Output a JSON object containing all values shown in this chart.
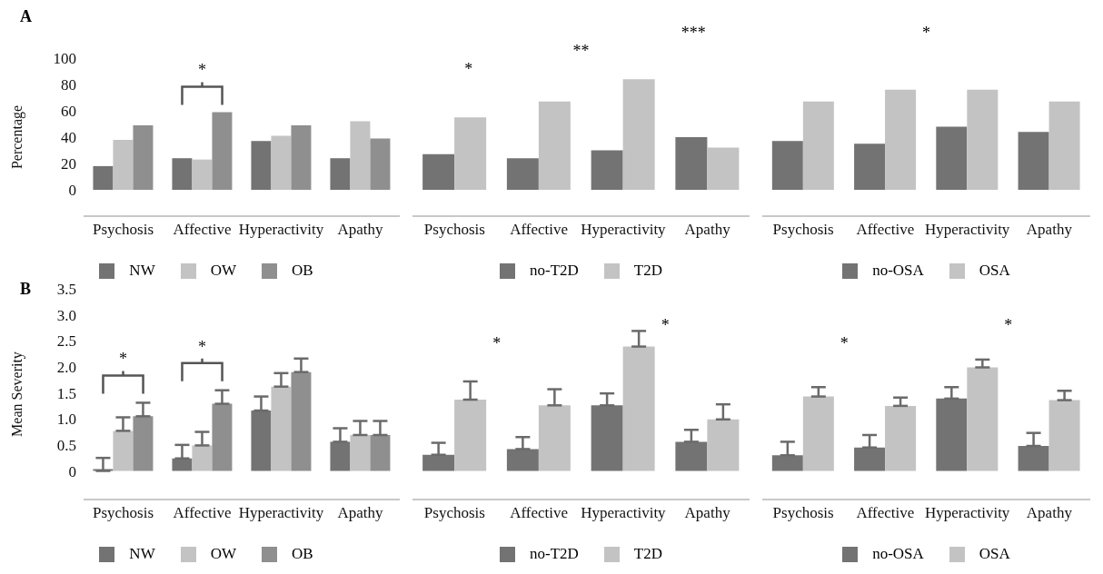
{
  "chart_data": [
    {
      "type": "bar",
      "title": "A",
      "ylabel": "Percentage",
      "categories": [
        "Psychosis",
        "Affective",
        "Hyperactivity",
        "Apathy"
      ],
      "series": [
        {
          "name": "NW",
          "color": "#737373",
          "values": [
            18,
            24,
            37,
            24
          ]
        },
        {
          "name": "OW",
          "color": "#c3c3c3",
          "values": [
            38,
            23,
            41,
            52
          ]
        },
        {
          "name": "OB",
          "color": "#8f8f8f",
          "values": [
            49,
            59,
            49,
            39
          ]
        }
      ],
      "ylim": [
        -20,
        100
      ],
      "yticks": [
        0,
        20,
        40,
        60,
        80,
        100
      ],
      "legend": "bottom",
      "annotations": [
        {
          "text": "*",
          "x": "Affective"
        }
      ]
    },
    {
      "type": "bar",
      "categories": [
        "Psychosis",
        "Affective",
        "Hyperactivity",
        "Apathy"
      ],
      "series": [
        {
          "name": "no-T2D",
          "color": "#737373",
          "values": [
            27,
            24,
            30,
            40
          ]
        },
        {
          "name": "T2D",
          "color": "#c3c3c3",
          "values": [
            55,
            67,
            84,
            32
          ]
        }
      ],
      "ylim": [
        -20,
        100
      ],
      "tick_labels": "x",
      "legend": "bottom",
      "annotations": [
        "*",
        "**",
        "***"
      ]
    },
    {
      "type": "bar",
      "categories": [
        "Psychosis",
        "Affective",
        "Hyperactivity",
        "Apathy"
      ],
      "series": [
        {
          "name": "no-OSA",
          "color": "#737373",
          "values": [
            37,
            35,
            48,
            44
          ]
        },
        {
          "name": "OSA",
          "color": "#c3c3c3",
          "values": [
            67,
            76,
            76,
            67
          ]
        }
      ],
      "ylim": [
        -20,
        100
      ],
      "tick_labels": "x",
      "legend": "bottom",
      "annotations": [
        "*"
      ]
    },
    {
      "type": "bar",
      "title": "B",
      "ylabel": "Mean Severity",
      "categories": [
        "Psychosis",
        "Affective",
        "Hyperactivity",
        "Apathy"
      ],
      "series": [
        {
          "name": "NW",
          "color": "#737373",
          "values": [
            0,
            0.24,
            1.16,
            0.56
          ],
          "errors": [
            [
              0,
              0.25
            ],
            [
              0.24,
              0.5
            ],
            [
              1.16,
              1.43
            ],
            [
              0.56,
              0.82
            ]
          ]
        },
        {
          "name": "OW",
          "color": "#c3c3c3",
          "values": [
            0.77,
            0.49,
            1.62,
            0.69
          ],
          "errors": [
            [
              0.77,
              1.03
            ],
            [
              0.49,
              0.75
            ],
            [
              1.62,
              1.88
            ],
            [
              0.69,
              0.96
            ]
          ]
        },
        {
          "name": "OB",
          "color": "#8f8f8f",
          "values": [
            1.05,
            1.29,
            1.9,
            0.69
          ],
          "errors": [
            [
              1.05,
              1.31
            ],
            [
              1.29,
              1.55
            ],
            [
              1.9,
              2.16
            ],
            [
              0.69,
              0.96
            ]
          ]
        }
      ],
      "ylim": [
        -0.55,
        3.5
      ],
      "yticks": [
        0,
        0.5,
        {
          "value": 1,
          "label": "1.0"
        },
        1.5,
        {
          "value": 2,
          "label": "2.0"
        },
        2.5,
        {
          "value": 3,
          "label": "3.0"
        },
        3.5
      ],
      "legend": "bottom",
      "annotations": [
        {
          "text": "*",
          "x": "Psychosis"
        },
        {
          "text": "*",
          "x": "Affective"
        }
      ]
    },
    {
      "type": "bar",
      "categories": [
        "Psychosis",
        "Affective",
        "Hyperactivity",
        "Apathy"
      ],
      "series": [
        {
          "name": "no-T2D",
          "color": "#737373",
          "values": [
            0.31,
            0.42,
            1.26,
            0.56
          ],
          "errors": [
            [
              0.31,
              0.54
            ],
            [
              0.42,
              0.65
            ],
            [
              1.26,
              1.49
            ],
            [
              0.56,
              0.79
            ]
          ]
        },
        {
          "name": "T2D",
          "color": "#c3c3c3",
          "values": [
            1.37,
            1.26,
            2.39,
            0.99
          ],
          "errors": [
            [
              1.37,
              1.72
            ],
            [
              1.26,
              1.57
            ],
            [
              2.39,
              2.69
            ],
            [
              0.99,
              1.28
            ]
          ]
        }
      ],
      "ylim": [
        -0.55,
        3.5
      ],
      "tick_labels": "x",
      "legend": "bottom",
      "annotations": [
        "*",
        "*"
      ]
    },
    {
      "type": "bar",
      "categories": [
        "Psychosis",
        "Affective",
        "Hyperactivity",
        "Apathy"
      ],
      "series": [
        {
          "name": "no-OSA",
          "color": "#737373",
          "values": [
            0.3,
            0.45,
            1.39,
            0.48
          ],
          "errors": [
            [
              0.3,
              0.56
            ],
            [
              0.45,
              0.69
            ],
            [
              1.39,
              1.61
            ],
            [
              0.48,
              0.73
            ]
          ]
        },
        {
          "name": "OSA",
          "color": "#c3c3c3",
          "values": [
            1.43,
            1.25,
            1.99,
            1.36
          ],
          "errors": [
            [
              1.43,
              1.61
            ],
            [
              1.25,
              1.41
            ],
            [
              1.99,
              2.14
            ],
            [
              1.36,
              1.54
            ]
          ]
        }
      ],
      "ylim": [
        -0.55,
        3.5
      ],
      "tick_labels": "x",
      "legend": "bottom",
      "annotations": [
        "*",
        "*"
      ]
    }
  ]
}
